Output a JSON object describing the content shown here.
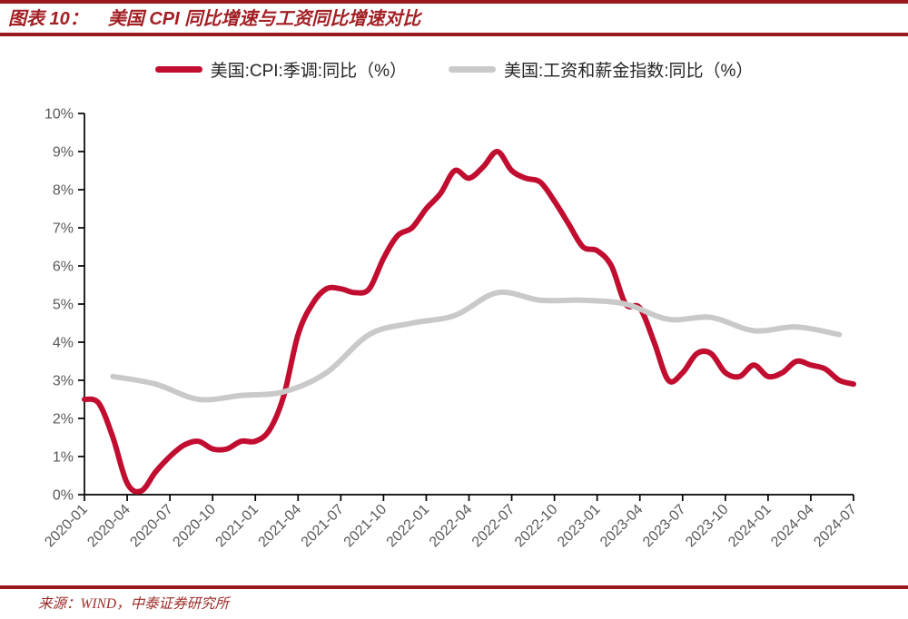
{
  "header": {
    "label": "图表 10：",
    "title": "美国 CPI 同比增速与工资同比增速对比"
  },
  "footer": {
    "source": "来源：WIND，中泰证券研究所"
  },
  "colors": {
    "rule_red": "#99191D",
    "title_red": "#A21F24",
    "footer_red": "#9B2C28",
    "cpi_red": "#C10D2F",
    "wage_gray": "#C9C9C9",
    "axis_line": "#000000",
    "axis_text": "#595959",
    "legend_text": "#262626"
  },
  "chart_data": {
    "type": "line",
    "title": "美国 CPI 同比增速与工资同比增速对比",
    "xlabel": "",
    "ylabel": "",
    "ylim": [
      0,
      10
    ],
    "grid": false,
    "legend_position": "top-center",
    "y_tick_labels": [
      "0%",
      "1%",
      "2%",
      "3%",
      "4%",
      "5%",
      "6%",
      "7%",
      "8%",
      "9%",
      "10%"
    ],
    "x_tick_labels": [
      "2020-01",
      "2020-04",
      "2020-07",
      "2020-10",
      "2021-01",
      "2021-04",
      "2021-07",
      "2021-10",
      "2022-01",
      "2022-04",
      "2022-07",
      "2022-10",
      "2023-01",
      "2023-04",
      "2023-07",
      "2023-10",
      "2024-01",
      "2024-04",
      "2024-07"
    ],
    "series": [
      {
        "id": "cpi",
        "name": "美国:CPI:季调:同比（%）",
        "color": "#C10D2F",
        "frequency": "monthly",
        "start_month": "2020-01",
        "monthly_values": [
          2.5,
          2.4,
          1.5,
          0.3,
          0.1,
          0.6,
          1.0,
          1.3,
          1.4,
          1.2,
          1.2,
          1.4,
          1.4,
          1.7,
          2.6,
          4.2,
          5.0,
          5.4,
          5.4,
          5.3,
          5.4,
          6.2,
          6.8,
          7.0,
          7.5,
          7.9,
          8.5,
          8.3,
          8.6,
          9.0,
          8.5,
          8.3,
          8.2,
          7.7,
          7.1,
          6.5,
          6.4,
          6.0,
          5.0,
          4.9,
          4.0,
          3.0,
          3.2,
          3.7,
          3.7,
          3.2,
          3.1,
          3.4,
          3.1,
          3.2,
          3.5,
          3.4,
          3.3,
          3.0,
          2.9
        ]
      },
      {
        "id": "wage",
        "name": "美国:工资和薪金指数:同比（%）",
        "color": "#C9C9C9",
        "frequency": "quarterly",
        "points": [
          {
            "month": "2020-03",
            "value": 3.1
          },
          {
            "month": "2020-06",
            "value": 2.9
          },
          {
            "month": "2020-09",
            "value": 2.5
          },
          {
            "month": "2020-12",
            "value": 2.6
          },
          {
            "month": "2021-03",
            "value": 2.7
          },
          {
            "month": "2021-06",
            "value": 3.2
          },
          {
            "month": "2021-09",
            "value": 4.2
          },
          {
            "month": "2021-12",
            "value": 4.5
          },
          {
            "month": "2022-03",
            "value": 4.7
          },
          {
            "month": "2022-06",
            "value": 5.3
          },
          {
            "month": "2022-09",
            "value": 5.1
          },
          {
            "month": "2022-12",
            "value": 5.1
          },
          {
            "month": "2023-03",
            "value": 5.0
          },
          {
            "month": "2023-06",
            "value": 4.6
          },
          {
            "month": "2023-09",
            "value": 4.65
          },
          {
            "month": "2023-12",
            "value": 4.3
          },
          {
            "month": "2024-03",
            "value": 4.4
          },
          {
            "month": "2024-06",
            "value": 4.2
          }
        ]
      }
    ]
  }
}
